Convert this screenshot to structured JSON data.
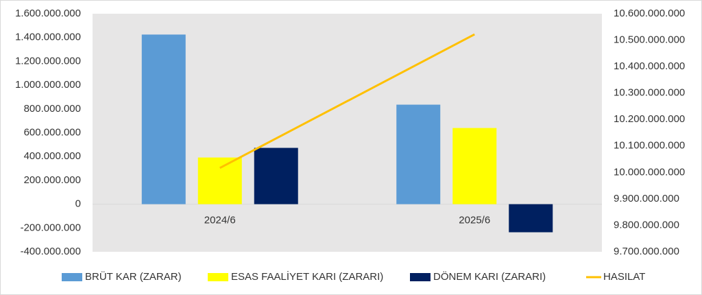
{
  "chart_data": {
    "type": "bar",
    "categories": [
      "2024/6",
      "2025/6"
    ],
    "series": [
      {
        "name": "BRÜT KAR (ZARAR)",
        "color": "#5b9bd5",
        "values": [
          1425000000,
          836000000
        ]
      },
      {
        "name": "ESAS FAALİYET KARI (ZARARI)",
        "color": "#ffff00",
        "values": [
          392000000,
          640000000
        ]
      },
      {
        "name": "DÖNEM KARI (ZARARI)",
        "color": "#002060",
        "values": [
          473000000,
          -236000000
        ]
      },
      {
        "name": "HASILAT",
        "color": "#ffc000",
        "type": "line",
        "axis": "y2",
        "values": [
          10017000000,
          10522000000
        ]
      }
    ],
    "ylim": [
      -400000000,
      1600000000
    ],
    "yticks": [
      {
        "value": -400000000,
        "label": "-400.000.000"
      },
      {
        "value": -200000000,
        "label": "-200.000.000"
      },
      0,
      {
        "value": 200000000,
        "label": "200.000.000"
      },
      {
        "value": 400000000,
        "label": "400.000.000"
      },
      {
        "value": 600000000,
        "label": "600.000.000"
      },
      {
        "value": 800000000,
        "label": "800.000.000"
      },
      {
        "value": 1000000000,
        "label": "1.000.000.000"
      },
      {
        "value": 1200000000,
        "label": "1.200.000.000"
      },
      {
        "value": 1400000000,
        "label": "1.400.000.000"
      },
      {
        "value": 1600000000,
        "label": "1.600.000.000"
      }
    ],
    "y2lim": [
      9700000000,
      10600000000
    ],
    "y2ticks": [
      {
        "value": 9700000000,
        "label": "9.700.000.000"
      },
      {
        "value": 9800000000,
        "label": "9.800.000.000"
      },
      {
        "value": 9900000000,
        "label": "9.900.000.000"
      },
      {
        "value": 10000000000,
        "label": "10.000.000.000"
      },
      {
        "value": 10100000000,
        "label": "10.100.000.000"
      },
      {
        "value": 10200000000,
        "label": "10.200.000.000"
      },
      {
        "value": 10300000000,
        "label": "10.300.000.000"
      },
      {
        "value": 10400000000,
        "label": "10.400.000.000"
      },
      {
        "value": 10500000000,
        "label": "10.500.000.000"
      },
      {
        "value": 10600000000,
        "label": "10.600.000.000"
      }
    ],
    "legend": "bottom"
  }
}
